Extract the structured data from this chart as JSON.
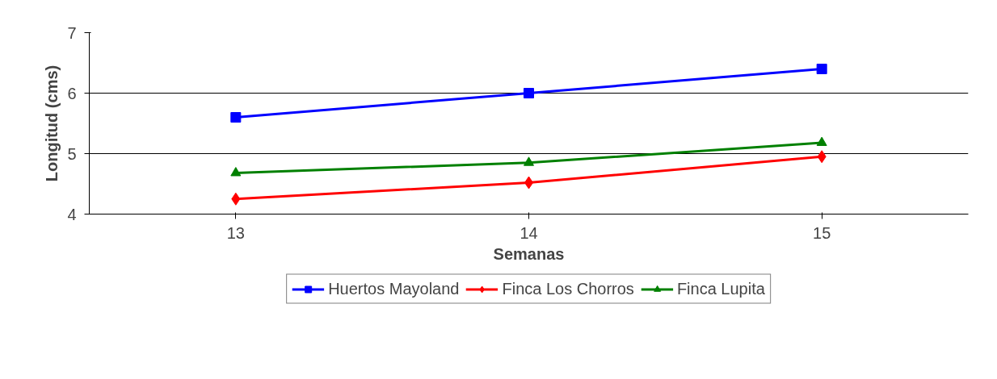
{
  "chart_data": {
    "type": "line",
    "xlabel": "Semanas",
    "ylabel": "Longitud (cms)",
    "categories": [
      "13",
      "14",
      "15"
    ],
    "ylim": [
      4,
      7
    ],
    "yticks": [
      4,
      5,
      6,
      7
    ],
    "grid": "y",
    "legend": "bottom",
    "line_style": "solid",
    "series": [
      {
        "name": "Huertos Mayoland",
        "color": "#0000ff",
        "marker": "square",
        "values": [
          5.6,
          6.0,
          6.4
        ]
      },
      {
        "name": "Finca Los Chorros",
        "color": "#ff0000",
        "marker": "diamond",
        "values": [
          4.25,
          4.52,
          4.95
        ]
      },
      {
        "name": "Finca Lupita",
        "color": "#008000",
        "marker": "triangle",
        "values": [
          4.68,
          4.85,
          5.18
        ]
      }
    ]
  }
}
